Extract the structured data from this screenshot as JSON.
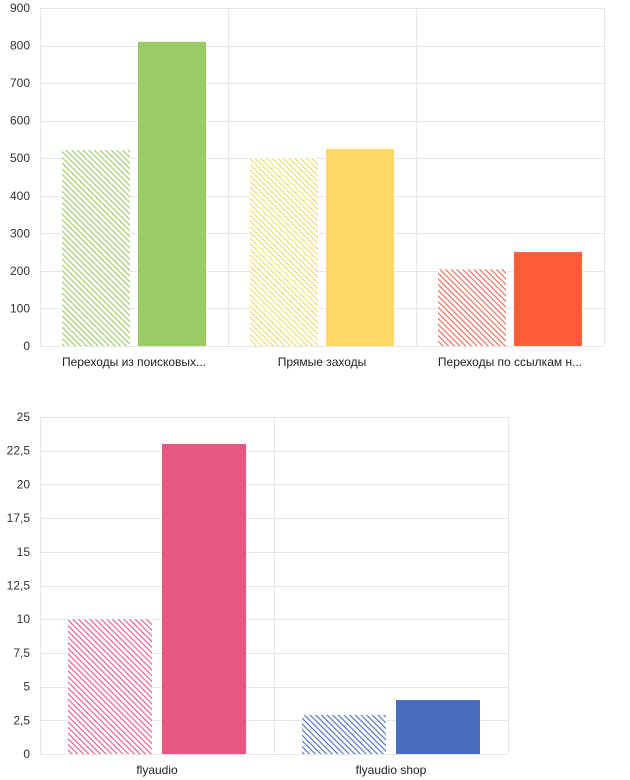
{
  "chart_data": [
    {
      "type": "bar",
      "title": "",
      "xlabel": "",
      "ylabel": "",
      "categories": [
        "Переходы из поисковых...",
        "Прямые заходы",
        "Переходы по ссылкам н..."
      ],
      "series": [
        {
          "values": [
            522,
            500,
            204
          ],
          "style": "hatched"
        },
        {
          "values": [
            810,
            525,
            250
          ],
          "style": "solid"
        }
      ],
      "category_colors": [
        "#99cc66",
        "#ffd966",
        "#ff5c3c"
      ],
      "hatch_colors": [
        "#99cc66",
        "#f0d870",
        "#e06a52"
      ],
      "ylim": [
        0,
        900
      ],
      "yticks": [
        {
          "value": 0,
          "label": "0"
        },
        {
          "value": 100,
          "label": "100"
        },
        {
          "value": 200,
          "label": "200"
        },
        {
          "value": 300,
          "label": "300"
        },
        {
          "value": 400,
          "label": "400"
        },
        {
          "value": 500,
          "label": "500"
        },
        {
          "value": 600,
          "label": "600"
        },
        {
          "value": 700,
          "label": "700"
        },
        {
          "value": 800,
          "label": "800"
        },
        {
          "value": 900,
          "label": "900"
        }
      ],
      "grid": true,
      "legend": "none"
    },
    {
      "type": "bar",
      "title": "",
      "xlabel": "",
      "ylabel": "",
      "categories": [
        "flyaudio",
        "flyaudio shop"
      ],
      "series": [
        {
          "values": [
            10,
            2.9
          ],
          "style": "hatched"
        },
        {
          "values": [
            23,
            4
          ],
          "style": "solid"
        }
      ],
      "category_colors": [
        "#e85682",
        "#4a6cc0"
      ],
      "hatch_colors": [
        "#e85682",
        "#4a6cc0"
      ],
      "ylim": [
        0,
        25
      ],
      "yticks": [
        {
          "value": 0,
          "label": "0"
        },
        {
          "value": 2.5,
          "label": "2,5"
        },
        {
          "value": 5,
          "label": "5"
        },
        {
          "value": 7.5,
          "label": "7,5"
        },
        {
          "value": 10,
          "label": "10"
        },
        {
          "value": 12.5,
          "label": "12,5"
        },
        {
          "value": 15,
          "label": "15"
        },
        {
          "value": 17.5,
          "label": "17,5"
        },
        {
          "value": 20,
          "label": "20"
        },
        {
          "value": 22.5,
          "label": "22,5"
        },
        {
          "value": 25,
          "label": "25"
        }
      ],
      "grid": true,
      "legend": "none"
    }
  ]
}
